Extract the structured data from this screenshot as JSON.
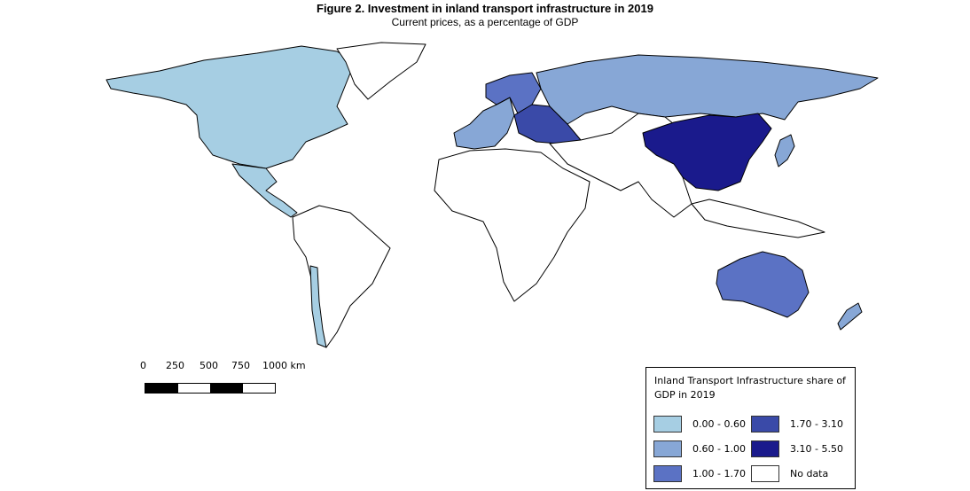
{
  "header": {
    "title": "Figure 2. Investment in inland transport infrastructure in 2019",
    "subtitle": "Current prices, as a percentage of GDP"
  },
  "scale": {
    "labels": [
      "0",
      "250",
      "500",
      "750",
      "1000 km"
    ]
  },
  "legend": {
    "title": "Inland Transport Infrastructure share of GDP in 2019",
    "items": [
      {
        "label": "0.00 - 0.60",
        "color": "#a6cee3"
      },
      {
        "label": "1.70 - 3.10",
        "color": "#3a4aa8"
      },
      {
        "label": "0.60 - 1.00",
        "color": "#87a7d6"
      },
      {
        "label": "3.10 - 5.50",
        "color": "#1a1a8c"
      },
      {
        "label": "1.00 - 1.70",
        "color": "#5b72c4"
      },
      {
        "label": "No data",
        "color": "#ffffff"
      }
    ]
  },
  "map_regions": [
    {
      "name": "north-america",
      "class": "0.00 - 0.60"
    },
    {
      "name": "central-america",
      "class": "0.00 - 0.60"
    },
    {
      "name": "south-america",
      "class": "No data"
    },
    {
      "name": "chile",
      "class": "0.00 - 0.60"
    },
    {
      "name": "greenland",
      "class": "No data"
    },
    {
      "name": "europe-west",
      "class": "0.60 - 1.00"
    },
    {
      "name": "europe-central",
      "class": "1.00 - 1.70"
    },
    {
      "name": "europe-east",
      "class": "1.70 - 3.10"
    },
    {
      "name": "russia",
      "class": "0.60 - 1.00"
    },
    {
      "name": "africa",
      "class": "No data"
    },
    {
      "name": "middle-east-asia",
      "class": "No data"
    },
    {
      "name": "china",
      "class": "3.10 - 5.50"
    },
    {
      "name": "japan",
      "class": "0.60 - 1.00"
    },
    {
      "name": "south-east-asia",
      "class": "No data"
    },
    {
      "name": "australia",
      "class": "1.00 - 1.70"
    },
    {
      "name": "new-zealand",
      "class": "0.60 - 1.00"
    }
  ]
}
